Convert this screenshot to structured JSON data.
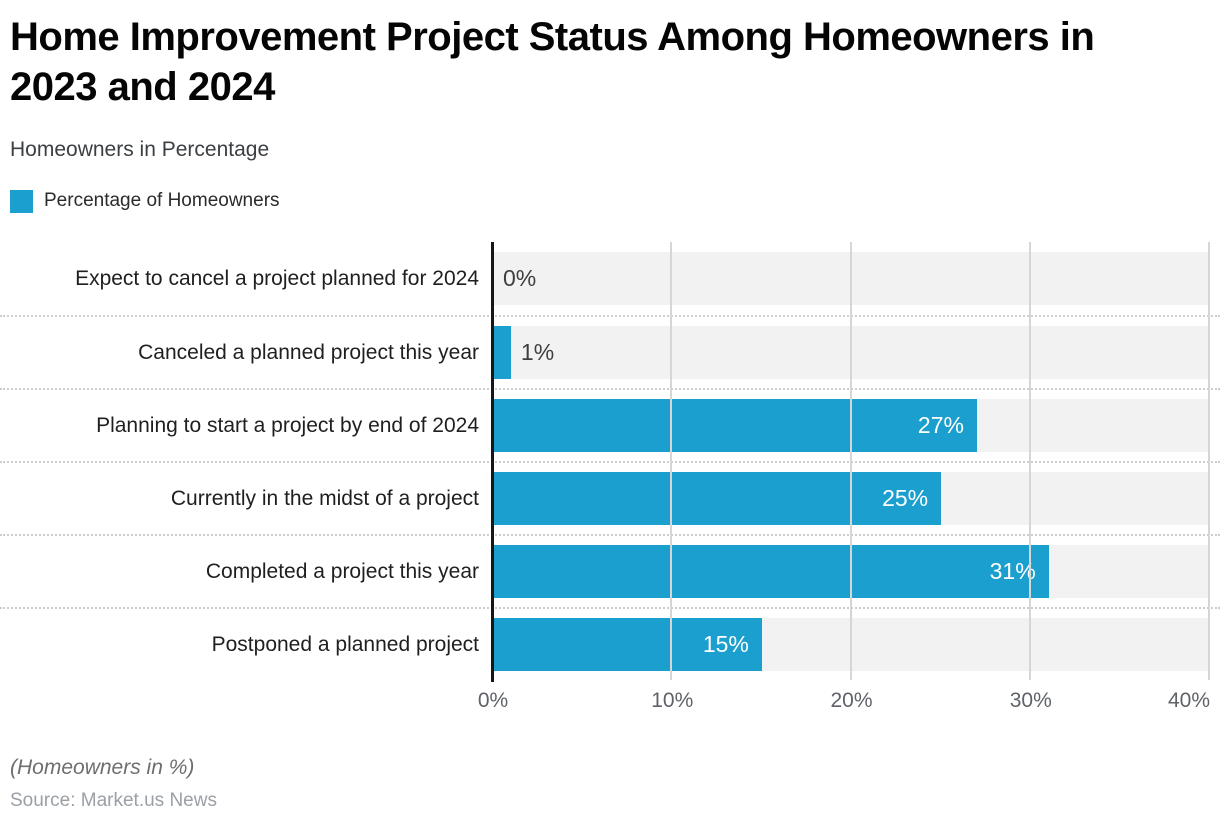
{
  "header": {
    "title_lines": [
      "Home Improvement Project Status Among Homeowners in",
      "2023 and 2024"
    ],
    "subtitle": "Homeowners in Percentage"
  },
  "legend": {
    "label": "Percentage of Homeowners",
    "swatch_color": "#1a9fce"
  },
  "chart_data": {
    "type": "bar",
    "orientation": "horizontal",
    "title": "Home Improvement Project Status Among Homeowners in 2023 and 2024",
    "subtitle": "Homeowners in Percentage",
    "series_name": "Percentage of Homeowners",
    "categories": [
      "Expect to cancel a project planned for 2024",
      "Canceled a planned project this year",
      "Planning to start a project by end of 2024",
      "Currently in the midst of a project",
      "Completed a project this year",
      "Postponed a planned project"
    ],
    "values": [
      0,
      1,
      27,
      25,
      31,
      15
    ],
    "value_labels": [
      "0%",
      "1%",
      "27%",
      "25%",
      "31%",
      "15%"
    ],
    "x_ticks": [
      "0%",
      "10%",
      "20%",
      "30%",
      "40%"
    ],
    "xlim": [
      0,
      40
    ],
    "xlabel": "",
    "ylabel": "",
    "bar_color": "#1a9fce",
    "track_color": "#f2f2f2",
    "grid": "vertical",
    "legend_position": "top-left",
    "inside_label_threshold": 5
  },
  "footer": {
    "note": "(Homeowners in %)",
    "source": "Source: Market.us News"
  }
}
